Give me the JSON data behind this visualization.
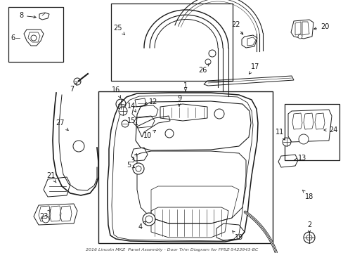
{
  "bg_color": "#ffffff",
  "line_color": "#1a1a1a",
  "fig_width": 4.89,
  "fig_height": 3.6,
  "dpi": 100,
  "note_bottom": "2016 Lincoln MKZ  Panel Assembly - Door Trim Diagram for FP5Z-5423943-BC"
}
